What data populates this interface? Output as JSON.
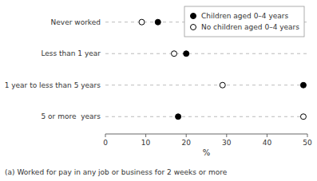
{
  "chart_data": {
    "type": "dot",
    "categories": [
      "Never worked",
      "Less than 1 year",
      "1 year to less than 5 years",
      "5 or more  years"
    ],
    "series": [
      {
        "name": "Children aged 0–4 years",
        "color": "#000000",
        "marker": "circle",
        "values": [
          13,
          20,
          49,
          18
        ]
      },
      {
        "name": "No children aged 0–4 years",
        "color": "#000000",
        "marker": "open-circle",
        "values": [
          9,
          17,
          29,
          49
        ]
      }
    ],
    "xlabel": "%",
    "xlim": [
      0,
      50
    ],
    "xticks": [
      0,
      10,
      20,
      30,
      40,
      50
    ],
    "grid": true,
    "legend": "upper right",
    "annotations": [
      "(a) Worked for pay in any job or business for 2 weeks or more"
    ]
  }
}
